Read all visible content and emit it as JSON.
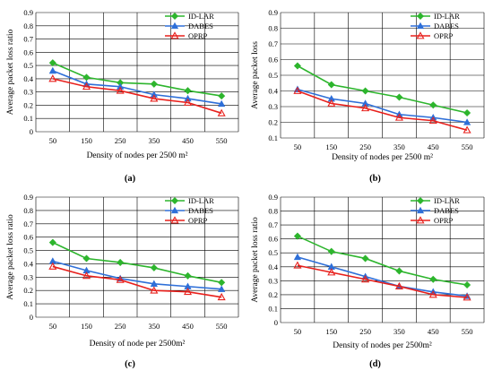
{
  "figure": {
    "panels": [
      "(a)",
      "(b)",
      "(c)",
      "(d)"
    ]
  },
  "colors": {
    "ID-LAR": "#2db52d",
    "DABES": "#2e6fd8",
    "OPRP": "#e8201c"
  },
  "markers": {
    "ID-LAR": "diamond",
    "DABES": "triangle",
    "OPRP": "triangle-open"
  },
  "chart_data": [
    {
      "type": "line",
      "panel_label": "(a)",
      "x": [
        "50",
        "150",
        "250",
        "350",
        "450",
        "550"
      ],
      "yticks": [
        "0",
        "0.1",
        "0.2",
        "0.3",
        "0.4",
        "0.5",
        "0.6",
        "0.7",
        "0.8",
        "0.9"
      ],
      "ylim": [
        0,
        0.9
      ],
      "xlabel": "Density of nodes per 2500 m²",
      "ylabel": "Average packet loss ratio",
      "grid": true,
      "legend_position": "top-right",
      "series": [
        {
          "name": "ID-LAR",
          "values": [
            0.52,
            0.41,
            0.37,
            0.36,
            0.31,
            0.27
          ]
        },
        {
          "name": "DABES",
          "values": [
            0.46,
            0.36,
            0.34,
            0.28,
            0.25,
            0.21
          ]
        },
        {
          "name": "OPRP",
          "values": [
            0.4,
            0.34,
            0.31,
            0.25,
            0.22,
            0.14
          ]
        }
      ]
    },
    {
      "type": "line",
      "panel_label": "(b)",
      "x": [
        "50",
        "150",
        "250",
        "350",
        "450",
        "550"
      ],
      "yticks": [
        "0.1",
        "0.2",
        "0.3",
        "0.4",
        "0.5",
        "0.6",
        "0.7",
        "0.8",
        "0.9"
      ],
      "ylim": [
        0.1,
        0.9
      ],
      "xlabel": "Density of nodes per 2500 m²",
      "ylabel": "Average packet loss",
      "grid": true,
      "legend_position": "top-right",
      "series": [
        {
          "name": "ID-LAR",
          "values": [
            0.56,
            0.44,
            0.4,
            0.36,
            0.31,
            0.26
          ]
        },
        {
          "name": "DABES",
          "values": [
            0.41,
            0.35,
            0.32,
            0.25,
            0.23,
            0.2
          ]
        },
        {
          "name": "OPRP",
          "values": [
            0.4,
            0.32,
            0.29,
            0.23,
            0.21,
            0.15
          ]
        }
      ]
    },
    {
      "type": "line",
      "panel_label": "(c)",
      "x": [
        "50",
        "150",
        "250",
        "350",
        "450",
        "550"
      ],
      "yticks": [
        "0",
        "0.1",
        "0.2",
        "0.3",
        "0.4",
        "0.5",
        "0.6",
        "0.7",
        "0.8",
        "0.9"
      ],
      "ylim": [
        0,
        0.9
      ],
      "xlabel": "Density of node per 2500m²",
      "ylabel": "Average packet loss ratio",
      "grid": true,
      "legend_position": "top-right",
      "series": [
        {
          "name": "ID-LAR",
          "values": [
            0.56,
            0.44,
            0.41,
            0.37,
            0.31,
            0.26
          ]
        },
        {
          "name": "DABES",
          "values": [
            0.42,
            0.35,
            0.29,
            0.25,
            0.23,
            0.21
          ]
        },
        {
          "name": "OPRP",
          "values": [
            0.38,
            0.31,
            0.28,
            0.2,
            0.19,
            0.15
          ]
        }
      ]
    },
    {
      "type": "line",
      "panel_label": "(d)",
      "x": [
        "50",
        "150",
        "250",
        "350",
        "450",
        "550"
      ],
      "yticks": [
        "0",
        "0.1",
        "0.2",
        "0.3",
        "0.4",
        "0.5",
        "0.6",
        "0.7",
        "0.8",
        "0.9"
      ],
      "ylim": [
        0,
        0.9
      ],
      "xlabel": "Density of nodes per 2500m²",
      "ylabel": "Average packet loss ratio",
      "grid": true,
      "legend_position": "top-right",
      "series": [
        {
          "name": "ID-LAR",
          "values": [
            0.62,
            0.51,
            0.46,
            0.37,
            0.31,
            0.27
          ]
        },
        {
          "name": "DABES",
          "values": [
            0.47,
            0.4,
            0.33,
            0.26,
            0.22,
            0.19
          ]
        },
        {
          "name": "OPRP",
          "values": [
            0.41,
            0.36,
            0.31,
            0.26,
            0.2,
            0.18
          ]
        }
      ]
    }
  ]
}
